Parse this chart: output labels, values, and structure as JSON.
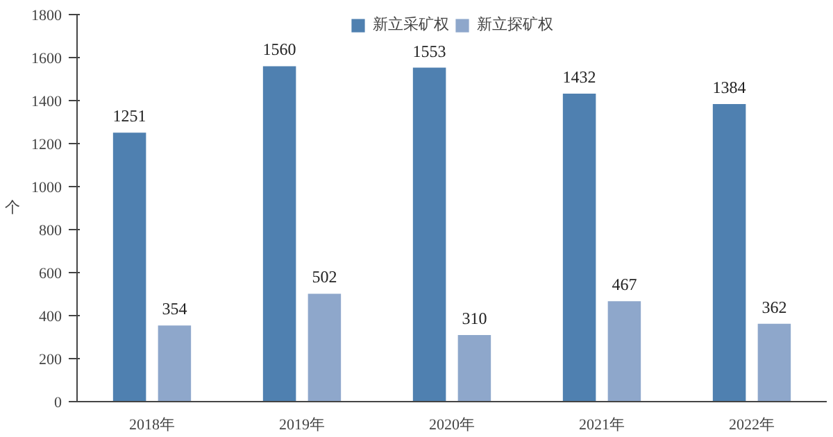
{
  "chart_data": {
    "type": "bar",
    "ylabel": "个",
    "categories": [
      "2018年",
      "2019年",
      "2020年",
      "2021年",
      "2022年"
    ],
    "series": [
      {
        "name": "新立采矿权",
        "color": "#4f80b0",
        "values": [
          1251,
          1560,
          1553,
          1432,
          1384
        ]
      },
      {
        "name": "新立探矿权",
        "color": "#8ea7cb",
        "values": [
          354,
          502,
          310,
          467,
          362
        ]
      }
    ],
    "ylim": [
      0,
      1800
    ],
    "yticks": [
      0,
      200,
      400,
      600,
      800,
      1000,
      1200,
      1400,
      1600,
      1800
    ],
    "grid": false,
    "legend": "top",
    "data_labels": true
  }
}
